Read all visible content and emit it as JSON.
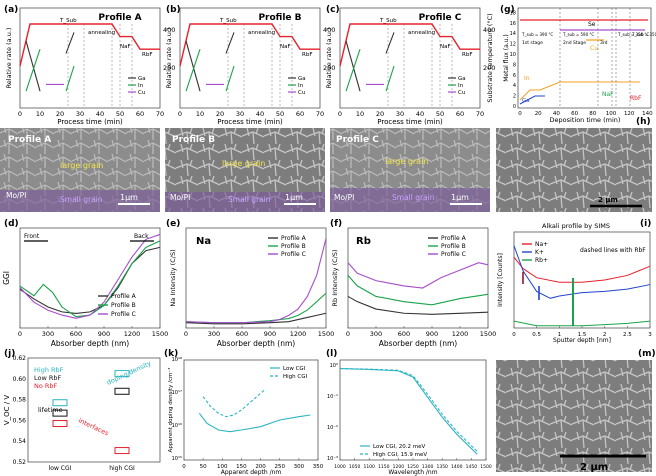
{
  "panels": {
    "a": {
      "label": "(a)",
      "profile": "Profile A",
      "ylabel": "Relative rate (a.u.)",
      "xlabel": "Process time (min)"
    },
    "b": {
      "label": "(b)",
      "profile": "Profile B",
      "ylabel": "Relative rate (a.u.)",
      "xlabel": "Process time (min)"
    },
    "c": {
      "label": "(c)",
      "profile": "Profile C",
      "ylabel": "Relative rate (a.u.)",
      "xlabel": "Process time (min)",
      "y2label": "Substrate temperature (°C)"
    },
    "g": {
      "label": "(g)",
      "xlabel": "Deposition time (min)",
      "ylabel": "Metal flux (a.u.)"
    },
    "h": {
      "label": "(h)",
      "scalebar": "2 μm"
    },
    "d": {
      "label": "(d)",
      "xlabel": "Absorber depth (nm)",
      "ylabel": "GGI",
      "front": "Front",
      "back": "Back"
    },
    "e": {
      "label": "(e)",
      "title": "Na",
      "xlabel": "Absorber depth (nm)",
      "ylabel": "Na Intensity (C/S)"
    },
    "f": {
      "label": "(f)",
      "title": "Rb",
      "xlabel": "Absorber depth (nm)",
      "ylabel": "Rb Intensity (C/S)"
    },
    "i": {
      "label": "(i)",
      "title": "Alkali profile by SIMS",
      "xlabel": "Sputter depth [nm]",
      "ylabel": "Intensity [Counts]",
      "note": "dashed lines with RbF"
    },
    "j": {
      "label": "(j)",
      "ylabel": "V_OC / V",
      "note_lifetime": "lifetime",
      "note_doping": "doping density",
      "note_interfaces": "interfaces"
    },
    "k": {
      "label": "(k)",
      "xlabel": "Apparent depth /nm",
      "ylabel": "Apparent doping density /cm⁻³"
    },
    "l": {
      "label": "(l)",
      "xlabel": "Wavelength /nm"
    },
    "m": {
      "label": "(m)",
      "scalebar": "2 μm"
    }
  },
  "process_labels": {
    "tsub": "T_Sub",
    "annealing": "annealing",
    "naf": "NaF",
    "rbf": "RbF",
    "ga": "Ga",
    "in": "In",
    "cu": "Cu"
  },
  "sem": {
    "a": {
      "profile": "Profile A",
      "large": "large grain",
      "small": "Small grain",
      "substrate": "Mo/PI",
      "scalebar": "1μm"
    },
    "b": {
      "profile": "Profile B",
      "large": "large grain",
      "small": "Small grain",
      "substrate": "Mo/PI",
      "scalebar": "1μm"
    },
    "c": {
      "profile": "Profile C",
      "large": "large grain",
      "small": "Small grain",
      "substrate": "Mo/PI",
      "scalebar": "1μm"
    }
  },
  "g_labels": {
    "se": "Se",
    "in": "In",
    "ga": "Ga",
    "cu": "Cu",
    "naf": "NaF",
    "rbf": "RbF",
    "stage1": "1st stage",
    "stage2": "2nd Stage",
    "stage3": "3rd",
    "t1": "T_sub = 390 °C",
    "t2": "T_sub = 590 °C",
    "t3": "T_sub = 350 °C",
    "t4": "T_sub = 350 °C"
  },
  "colors": {
    "red": "#e8202a",
    "green": "#1aa34a",
    "purple": "#a64dcc",
    "black": "#333333",
    "orange": "#f0a020",
    "blue": "#2244cc",
    "teal": "#2bb5c0"
  },
  "chart_data": [
    {
      "id": "a",
      "type": "line",
      "title": "",
      "xlabel": "Process time (min)",
      "xlim": [
        0,
        70
      ],
      "xticks": [
        0,
        10,
        20,
        30,
        40,
        50,
        60,
        70
      ],
      "y2label": "",
      "y2ticks": [
        200,
        400
      ],
      "series": [
        {
          "name": "",
          "x": [
            0,
            5,
            9,
            46,
            50,
            56,
            60,
            70
          ],
          "y": [
            0.5,
            1.0,
            1.0,
            1.0,
            0.85,
            0.85,
            0.7,
            0.7
          ]
        },
        {
          "name": "Ga",
          "x": [
            3,
            10
          ],
          "y": [
            0.8,
            0.2
          ]
        },
        {
          "name": "In",
          "x": [
            3,
            10
          ],
          "y": [
            0.2,
            0.7
          ]
        },
        {
          "name": "In",
          "x": [
            23,
            27
          ],
          "y": [
            0.2,
            0.5
          ]
        },
        {
          "name": "Ga",
          "x": [
            23,
            27
          ],
          "y": [
            0.65,
            0.9
          ]
        },
        {
          "name": "Cu",
          "x": [
            13,
            22
          ],
          "y": [
            0.28,
            0.28
          ]
        }
      ],
      "xticklabels": [
        "0",
        "10",
        "20",
        "30",
        "40",
        "50",
        "60",
        "70"
      ]
    },
    {
      "id": "d",
      "type": "line",
      "xlabel": "Absorber depth (nm)",
      "ylabel": "GGI",
      "xlim": [
        0,
        1500
      ],
      "xticks": [
        0,
        300,
        600,
        900,
        1200,
        1500
      ],
      "series": [
        {
          "name": "Profile A",
          "x": [
            0,
            150,
            300,
            450,
            600,
            750,
            900,
            1050,
            1200,
            1350,
            1500
          ],
          "y": [
            0.44,
            0.38,
            0.33,
            0.3,
            0.29,
            0.3,
            0.34,
            0.45,
            0.6,
            0.68,
            0.7
          ]
        },
        {
          "name": "Profile B",
          "x": [
            0,
            150,
            250,
            350,
            450,
            600,
            750,
            900,
            1050,
            1200,
            1350,
            1500
          ],
          "y": [
            0.46,
            0.4,
            0.47,
            0.42,
            0.33,
            0.27,
            0.28,
            0.34,
            0.46,
            0.6,
            0.7,
            0.74
          ]
        },
        {
          "name": "Profile C",
          "x": [
            0,
            150,
            300,
            450,
            600,
            750,
            900,
            1050,
            1200,
            1350,
            1500
          ],
          "y": [
            0.45,
            0.36,
            0.31,
            0.28,
            0.26,
            0.28,
            0.36,
            0.5,
            0.64,
            0.75,
            0.78
          ]
        }
      ]
    },
    {
      "id": "e",
      "type": "line",
      "title": "Na",
      "xlabel": "Absorber depth (nm)",
      "ylabel": "Na Intensity (C/S)",
      "xlim": [
        0,
        1500
      ],
      "xticks": [
        0,
        300,
        600,
        900,
        1200,
        1500
      ],
      "series": [
        {
          "name": "Profile A",
          "x": [
            0,
            300,
            600,
            900,
            1100,
            1200,
            1300,
            1400,
            1500
          ],
          "y": [
            0.05,
            0.04,
            0.04,
            0.05,
            0.06,
            0.08,
            0.1,
            0.12,
            0.14
          ]
        },
        {
          "name": "Profile B",
          "x": [
            0,
            300,
            600,
            900,
            1100,
            1200,
            1300,
            1400,
            1500
          ],
          "y": [
            0.06,
            0.05,
            0.05,
            0.07,
            0.09,
            0.12,
            0.17,
            0.25,
            0.33
          ]
        },
        {
          "name": "Profile C",
          "x": [
            0,
            300,
            600,
            900,
            1000,
            1100,
            1200,
            1300,
            1400,
            1500
          ],
          "y": [
            0.06,
            0.05,
            0.05,
            0.06,
            0.08,
            0.12,
            0.18,
            0.3,
            0.5,
            0.85
          ]
        }
      ]
    },
    {
      "id": "f",
      "type": "line",
      "title": "Rb",
      "xlabel": "Absorber depth (nm)",
      "ylabel": "Rb Intensity (C/S)",
      "xlim": [
        0,
        1500
      ],
      "xticks": [
        0,
        300,
        600,
        900,
        1200,
        1500
      ],
      "series": [
        {
          "name": "Profile A",
          "x": [
            0,
            100,
            300,
            600,
            900,
            1200,
            1500
          ],
          "y": [
            0.3,
            0.25,
            0.18,
            0.14,
            0.13,
            0.14,
            0.15
          ]
        },
        {
          "name": "Profile B",
          "x": [
            0,
            100,
            300,
            600,
            900,
            1200,
            1500
          ],
          "y": [
            0.5,
            0.4,
            0.3,
            0.25,
            0.22,
            0.28,
            0.32
          ]
        },
        {
          "name": "Profile C",
          "x": [
            0,
            100,
            300,
            600,
            800,
            1000,
            1200,
            1400,
            1500
          ],
          "y": [
            0.62,
            0.52,
            0.45,
            0.4,
            0.38,
            0.48,
            0.55,
            0.62,
            0.6
          ]
        }
      ]
    },
    {
      "id": "i",
      "type": "line",
      "title": "Alkali profile by SIMS",
      "xlabel": "Sputter depth [nm]",
      "ylabel": "Intensity [Counts]",
      "xlim": [
        0,
        3.0
      ],
      "xticks": [
        0,
        0.5,
        1.0,
        1.5,
        2.0,
        2.5,
        3.0
      ],
      "legend": [
        "Na+",
        "K+",
        "Rb+"
      ],
      "series": [
        {
          "name": "Na+",
          "x": [
            0,
            0.2,
            0.5,
            1.0,
            1.5,
            2.0,
            2.5,
            3.0
          ],
          "y": [
            3.1,
            2.6,
            2.2,
            2.0,
            2.0,
            2.1,
            2.3,
            2.7
          ]
        },
        {
          "name": "K+",
          "x": [
            0,
            0.2,
            0.5,
            0.8,
            1.0,
            1.5,
            2.0,
            2.5,
            3.0
          ],
          "y": [
            3.6,
            2.5,
            1.6,
            1.3,
            1.4,
            1.55,
            1.6,
            1.7,
            1.9
          ]
        },
        {
          "name": "Rb+",
          "x": [
            0,
            0.5,
            1.0,
            1.5,
            2.0,
            2.5,
            3.0
          ],
          "y": [
            0.3,
            0.1,
            0.1,
            0.1,
            0.15,
            0.2,
            0.3
          ]
        }
      ]
    },
    {
      "id": "j",
      "type": "scatter",
      "ylabel": "V_OC / V",
      "categories": [
        "low CGI",
        "high CGI"
      ],
      "ylim": [
        0.52,
        0.62
      ],
      "yticks": [
        0.52,
        0.54,
        0.56,
        0.58,
        0.6,
        0.62
      ],
      "legend": [
        "High RbF",
        "Low RbF",
        "No RbF"
      ],
      "series": [
        {
          "name": "High RbF",
          "values": [
            0.577,
            0.605
          ]
        },
        {
          "name": "Low RbF",
          "values": [
            0.567,
            0.588
          ]
        },
        {
          "name": "No RbF",
          "values": [
            0.557,
            0.531
          ]
        }
      ]
    },
    {
      "id": "k",
      "type": "line",
      "xlabel": "Apparent depth /nm",
      "ylabel": "Apparent doping density /cm⁻³",
      "xlim": [
        0,
        350
      ],
      "xticks": [
        0,
        50,
        100,
        150,
        200,
        250,
        300,
        350
      ],
      "legend": [
        "Low CGI",
        "High CGI"
      ],
      "series": [
        {
          "name": "Low CGI",
          "x": [
            40,
            60,
            90,
            120,
            150,
            200,
            250,
            300,
            330
          ],
          "y": [
            16.4,
            16.1,
            15.9,
            15.85,
            15.9,
            16.0,
            16.2,
            16.3,
            16.35
          ]
        },
        {
          "name": "High CGI",
          "x": [
            50,
            70,
            90,
            110,
            130,
            150,
            180,
            210
          ],
          "y": [
            16.9,
            16.6,
            16.4,
            16.3,
            16.35,
            16.5,
            16.8,
            17.1
          ]
        }
      ]
    },
    {
      "id": "l",
      "type": "line",
      "xlabel": "Wavelength /nm",
      "xlim": [
        1000,
        1500
      ],
      "xticks": [
        1000,
        1050,
        1100,
        1150,
        1200,
        1250,
        1300,
        1350,
        1400,
        1450,
        1500
      ],
      "legend": [
        "Low CGI, 20.2 meV",
        "High CGI, 15.9 meV"
      ],
      "series": [
        {
          "name": "Low CGI, 20.2 meV",
          "x": [
            1000,
            1100,
            1200,
            1250,
            1300,
            1350,
            1400,
            1450,
            1470
          ],
          "y": [
            0.0,
            -0.03,
            -0.08,
            -0.3,
            -1.0,
            -1.7,
            -2.3,
            -2.8,
            -3.0
          ]
        },
        {
          "name": "High CGI, 15.9 meV",
          "x": [
            1000,
            1100,
            1200,
            1250,
            1300,
            1350,
            1400,
            1450,
            1470
          ],
          "y": [
            0.0,
            -0.02,
            -0.06,
            -0.25,
            -0.9,
            -1.6,
            -2.2,
            -2.7,
            -2.9
          ]
        }
      ]
    }
  ]
}
